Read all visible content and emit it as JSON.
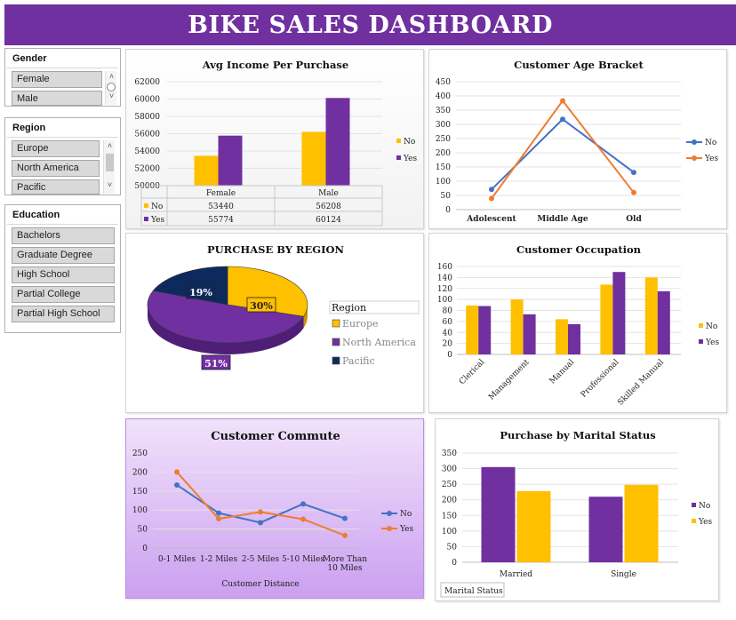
{
  "dashboard_title": "BIKE SALES DASHBOARD",
  "colors": {
    "purple": "#7030a0",
    "gold": "#ffc000",
    "blue": "#4472c4",
    "orange": "#ed7d31",
    "navy": "#0e2a5c"
  },
  "slicers": {
    "gender": {
      "title": "Gender",
      "items": [
        "Female",
        "Male"
      ]
    },
    "region": {
      "title": "Region",
      "items": [
        "Europe",
        "North America",
        "Pacific"
      ]
    },
    "education": {
      "title": "Education",
      "items": [
        "Bachelors",
        "Graduate Degree",
        "High School",
        "Partial College",
        "Partial High School"
      ]
    }
  },
  "charts": {
    "avg_income": {
      "title": "Avg Income Per Purchase",
      "type": "bar",
      "categories": [
        "Female",
        "Male"
      ],
      "ylim": [
        50000,
        62000
      ],
      "yticks": [
        "62000",
        "60000",
        "58000",
        "56000",
        "54000",
        "52000",
        "50000"
      ],
      "series": [
        {
          "name": "No",
          "values": [
            53440,
            56208
          ]
        },
        {
          "name": "Yes",
          "values": [
            55774,
            60124
          ]
        }
      ],
      "table_rows": [
        {
          "name": "No",
          "cells": [
            "53440",
            "56208"
          ]
        },
        {
          "name": "Yes",
          "cells": [
            "55774",
            "60124"
          ]
        }
      ]
    },
    "age_bracket": {
      "title": "Customer Age Bracket",
      "type": "line",
      "categories": [
        "Adolescent",
        "Middle Age",
        "Old"
      ],
      "ylim": [
        0,
        450
      ],
      "yticks": [
        "450",
        "400",
        "350",
        "300",
        "250",
        "200",
        "150",
        "100",
        "50",
        "0"
      ],
      "series": [
        {
          "name": "No",
          "values": [
            71,
            318,
            131
          ]
        },
        {
          "name": "Yes",
          "values": [
            39,
            383,
            60
          ]
        }
      ]
    },
    "region_pie": {
      "title": "PURCHASE BY REGION",
      "type": "pie",
      "legend_title": "Region",
      "slices": [
        {
          "name": "Europe",
          "value": 30,
          "label": "30%"
        },
        {
          "name": "North America",
          "value": 51,
          "label": "51%"
        },
        {
          "name": "Pacific",
          "value": 19,
          "label": "19%"
        }
      ]
    },
    "occupation": {
      "title": "Customer Occupation",
      "type": "bar",
      "categories": [
        "Clerical",
        "Management",
        "Manual",
        "Professional",
        "Skilled Manual"
      ],
      "ylim": [
        0,
        160
      ],
      "yticks": [
        "160",
        "140",
        "120",
        "100",
        "80",
        "60",
        "40",
        "20",
        "0"
      ],
      "series": [
        {
          "name": "No",
          "values": [
            89,
            100,
            64,
            127,
            140
          ]
        },
        {
          "name": "Yes",
          "values": [
            88,
            73,
            55,
            150,
            115
          ]
        }
      ]
    },
    "commute": {
      "title": "Customer Commute",
      "type": "line",
      "xlabel": "Customer Distance",
      "categories": [
        "0-1 Miles",
        "1-2 Miles",
        "2-5 Miles",
        "5-10 Miles",
        "More Than 10 Miles"
      ],
      "ylim": [
        0,
        250
      ],
      "yticks": [
        "250",
        "200",
        "150",
        "100",
        "50",
        "0"
      ],
      "series": [
        {
          "name": "No",
          "values": [
            166,
            92,
            67,
            116,
            78
          ]
        },
        {
          "name": "Yes",
          "values": [
            200,
            77,
            95,
            76,
            33
          ]
        }
      ]
    },
    "marital": {
      "title": "Purchase by Marital Status",
      "type": "bar",
      "axis_field": "Marital Status",
      "categories": [
        "Married",
        "Single"
      ],
      "ylim": [
        0,
        350
      ],
      "yticks": [
        "350",
        "300",
        "250",
        "200",
        "150",
        "100",
        "50",
        "0"
      ],
      "series": [
        {
          "name": "No",
          "values": [
            305,
            210
          ]
        },
        {
          "name": "Yes",
          "values": [
            228,
            248
          ]
        }
      ]
    }
  }
}
